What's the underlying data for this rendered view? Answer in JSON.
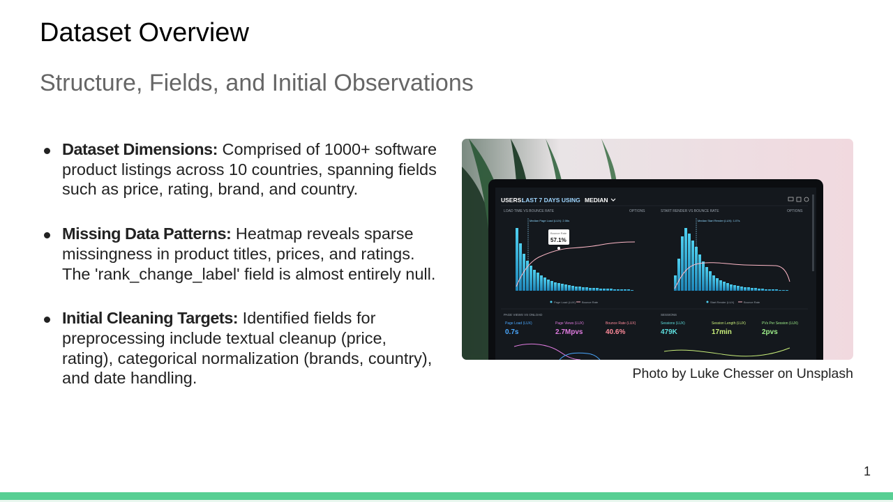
{
  "slide": {
    "title": "Dataset Overview",
    "subtitle": "Structure, Fields, and Initial Observations",
    "page_number": "1",
    "accent_color": "#57cf93"
  },
  "bullets": [
    {
      "heading": "Dataset Dimensions:",
      "text": " Comprised of 1000+ software product listings across 10 countries, spanning fields such as price, rating, brand, and country."
    },
    {
      "heading": "Missing Data Patterns:",
      "text": " Heatmap reveals sparse missingness in product titles, prices, and ratings. The 'rank_change_label' field is almost entirely null."
    },
    {
      "heading": "Initial Cleaning Targets:",
      "text": " Identified fields for preprocessing include textual cleanup (price, rating), categorical normalization (brands, country), and date handling."
    }
  ],
  "photo": {
    "caption": "Photo by Luke Chesser on Unsplash",
    "dashboard": {
      "header_prefix": "USERS:",
      "header_period": "LAST 7 DAYS USING",
      "header_method": "MEDIAN",
      "panel_left_title": "LOAD TIME VS BOUNCE RATE",
      "panel_right_title": "START RENDER VS BOUNCE RATE",
      "options_label": "OPTIONS",
      "tooltip_label": "Bounce Rate",
      "tooltip_value": "57.1%",
      "median_left": "Median Page Load (LUX): 2.06s",
      "median_right": "Median Start Render (LUX): 1.07s",
      "legend_left_a": "Page Load (LUX)",
      "legend_left_b": "Bounce Rate",
      "legend_right_a": "Start Render (LUX)",
      "legend_right_b": "Bounce Rate",
      "bottom_left_title": "PAGE VIEWS VS ONLOAD",
      "bottom_right_title": "SESSIONS",
      "metrics": [
        {
          "label": "Page Load (LUX)",
          "value": "0.7s",
          "color": "#4aa8ff"
        },
        {
          "label": "Page Views (LUX)",
          "value": "2.7Mpvs",
          "color": "#e07be0"
        },
        {
          "label": "Bounce Rate (LUX)",
          "value": "40.6%",
          "color": "#ff8a9a"
        },
        {
          "label": "Sessions (LUX)",
          "value": "479K",
          "color": "#5ee0e0"
        },
        {
          "label": "Session Length (LUX)",
          "value": "17min",
          "color": "#c9ef7a"
        },
        {
          "label": "PVs Per Session (LUX)",
          "value": "2pvs",
          "color": "#9ff08a"
        }
      ]
    }
  }
}
